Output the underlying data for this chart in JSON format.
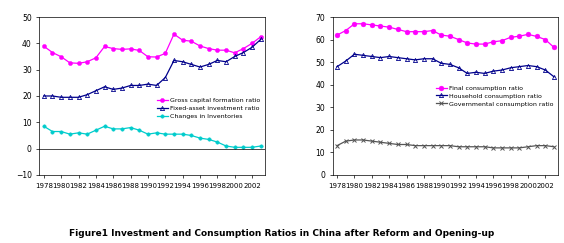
{
  "years": [
    1978,
    1979,
    1980,
    1981,
    1982,
    1983,
    1984,
    1985,
    1986,
    1987,
    1988,
    1989,
    1990,
    1991,
    1992,
    1993,
    1994,
    1995,
    1996,
    1997,
    1998,
    1999,
    2000,
    2001,
    2002,
    2003
  ],
  "gross_capital": [
    38.9,
    36.5,
    34.9,
    32.6,
    32.4,
    33.0,
    34.5,
    38.8,
    38.0,
    37.7,
    37.9,
    37.3,
    34.9,
    34.8,
    36.2,
    43.5,
    41.2,
    40.8,
    39.0,
    38.0,
    37.4,
    37.4,
    36.4,
    38.0,
    40.0,
    42.5
  ],
  "fixed_asset": [
    20.0,
    20.0,
    19.5,
    19.5,
    19.5,
    20.5,
    22.0,
    23.5,
    22.5,
    23.0,
    24.0,
    24.0,
    24.5,
    24.0,
    27.0,
    33.5,
    33.0,
    32.0,
    31.0,
    32.0,
    33.5,
    33.0,
    35.0,
    36.5,
    38.5,
    41.5
  ],
  "inventories": [
    8.5,
    6.5,
    6.5,
    5.5,
    6.0,
    5.5,
    7.0,
    8.5,
    7.5,
    7.5,
    8.0,
    7.0,
    5.5,
    6.0,
    5.5,
    5.5,
    5.5,
    5.0,
    4.0,
    3.5,
    2.5,
    1.0,
    0.5,
    0.5,
    0.5,
    1.0
  ],
  "final_consumption": [
    62.0,
    64.0,
    67.0,
    67.0,
    66.5,
    66.0,
    65.5,
    64.5,
    63.5,
    63.5,
    63.5,
    64.0,
    62.0,
    61.5,
    60.0,
    58.5,
    58.0,
    58.0,
    59.0,
    59.5,
    61.0,
    61.5,
    62.3,
    61.4,
    60.0,
    56.5
  ],
  "household_consumption": [
    48.0,
    50.5,
    53.5,
    53.0,
    52.5,
    52.0,
    52.5,
    52.0,
    51.5,
    51.0,
    51.5,
    51.5,
    49.5,
    49.0,
    47.5,
    45.0,
    45.5,
    45.0,
    46.0,
    46.5,
    47.5,
    48.0,
    48.5,
    48.0,
    46.5,
    43.5
  ],
  "gov_consumption": [
    13.0,
    15.0,
    15.5,
    15.5,
    15.0,
    14.5,
    14.0,
    13.5,
    13.5,
    13.0,
    13.0,
    13.0,
    13.0,
    13.0,
    12.5,
    12.5,
    12.5,
    12.5,
    12.0,
    12.0,
    12.0,
    12.0,
    12.5,
    13.0,
    13.0,
    12.5
  ],
  "color_gross": "#FF00FF",
  "color_fixed": "#00008B",
  "color_inv": "#00CCCC",
  "color_final": "#FF00FF",
  "color_household": "#00008B",
  "color_gov": "#555555",
  "title": "Figure1 Investment and Consumption Ratios in China after Reform and Opening-up",
  "left_ylim": [
    -10,
    50
  ],
  "right_ylim": [
    0,
    70
  ],
  "left_yticks": [
    -10,
    0,
    10,
    20,
    30,
    40,
    50
  ],
  "right_yticks": [
    0,
    10,
    20,
    30,
    40,
    50,
    60,
    70
  ],
  "xticks": [
    1978,
    1980,
    1982,
    1984,
    1986,
    1988,
    1990,
    1992,
    1994,
    1996,
    1998,
    2000,
    2002
  ],
  "xticklabels": [
    "1978",
    "1980",
    "1982",
    "1984",
    "1986",
    "1988",
    "1990",
    "1992",
    "1994",
    "1996",
    "1998",
    "2000",
    "2002"
  ]
}
